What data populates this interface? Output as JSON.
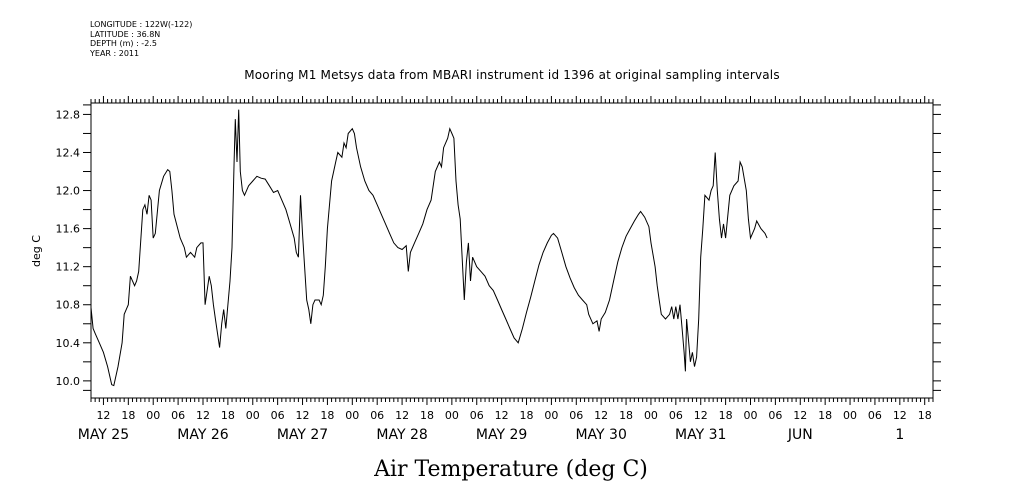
{
  "header": {
    "longitude": "LONGITUDE : 122W(-122)",
    "latitude": "LATITUDE : 36.8N",
    "depth": "DEPTH (m) : -2.5",
    "year": "YEAR : 2011"
  },
  "chart_data": {
    "type": "line",
    "title": "Mooring M1 Metsys data from MBARI instrument id 1396 at original sampling intervals",
    "xlabel": "Air Temperature (deg C)",
    "ylabel": "deg C",
    "ylim": [
      9.82,
      12.92
    ],
    "xlim": [
      3,
      206
    ],
    "x_units": "hours since May 25 00:00, 2011",
    "yticks": [
      "10.0",
      "10.4",
      "10.8",
      "11.2",
      "11.6",
      "12.0",
      "12.4",
      "12.8"
    ],
    "ytick_values": [
      10.0,
      10.4,
      10.8,
      11.2,
      11.6,
      12.0,
      12.4,
      12.8
    ],
    "hour_ticks": [
      {
        "x": 6,
        "label": "12"
      },
      {
        "x": 12,
        "label": "18"
      },
      {
        "x": 18,
        "label": "00"
      },
      {
        "x": 24,
        "label": "06"
      },
      {
        "x": 30,
        "label": "12"
      },
      {
        "x": 36,
        "label": "18"
      },
      {
        "x": 42,
        "label": "00"
      },
      {
        "x": 48,
        "label": "06"
      },
      {
        "x": 54,
        "label": "12"
      },
      {
        "x": 60,
        "label": "18"
      },
      {
        "x": 66,
        "label": "00"
      },
      {
        "x": 72,
        "label": "06"
      },
      {
        "x": 78,
        "label": "12"
      },
      {
        "x": 84,
        "label": "18"
      },
      {
        "x": 90,
        "label": "00"
      },
      {
        "x": 96,
        "label": "06"
      },
      {
        "x": 102,
        "label": "12"
      },
      {
        "x": 108,
        "label": "18"
      },
      {
        "x": 114,
        "label": "00"
      },
      {
        "x": 120,
        "label": "06"
      },
      {
        "x": 126,
        "label": "12"
      },
      {
        "x": 132,
        "label": "18"
      },
      {
        "x": 138,
        "label": "00"
      },
      {
        "x": 144,
        "label": "06"
      },
      {
        "x": 150,
        "label": "12"
      },
      {
        "x": 156,
        "label": "18"
      },
      {
        "x": 162,
        "label": "00"
      },
      {
        "x": 168,
        "label": "06"
      },
      {
        "x": 174,
        "label": "12"
      },
      {
        "x": 180,
        "label": "18"
      },
      {
        "x": 186,
        "label": "00"
      },
      {
        "x": 192,
        "label": "06"
      },
      {
        "x": 198,
        "label": "12"
      },
      {
        "x": 204,
        "label": "18"
      }
    ],
    "day_labels": [
      {
        "x": 6,
        "label": "MAY 25"
      },
      {
        "x": 30,
        "label": "MAY 26"
      },
      {
        "x": 54,
        "label": "MAY 27"
      },
      {
        "x": 78,
        "label": "MAY 28"
      },
      {
        "x": 102,
        "label": "MAY 29"
      },
      {
        "x": 126,
        "label": "MAY 30"
      },
      {
        "x": 150,
        "label": "MAY 31"
      },
      {
        "x": 174,
        "label": "JUN"
      },
      {
        "x": 198,
        "label": "1"
      }
    ],
    "series": [
      {
        "color": "#000000",
        "points": [
          [
            3.0,
            10.77
          ],
          [
            3.5,
            10.55
          ],
          [
            4.0,
            10.5
          ],
          [
            5.0,
            10.4
          ],
          [
            6.0,
            10.3
          ],
          [
            7.0,
            10.15
          ],
          [
            8.0,
            9.96
          ],
          [
            8.5,
            9.95
          ],
          [
            9.5,
            10.15
          ],
          [
            10.5,
            10.4
          ],
          [
            11.0,
            10.7
          ],
          [
            12.0,
            10.8
          ],
          [
            12.5,
            11.1
          ],
          [
            13.5,
            11.0
          ],
          [
            14.0,
            11.05
          ],
          [
            14.5,
            11.15
          ],
          [
            15.5,
            11.8
          ],
          [
            16.0,
            11.85
          ],
          [
            16.5,
            11.75
          ],
          [
            17.0,
            11.95
          ],
          [
            17.5,
            11.9
          ],
          [
            18.0,
            11.5
          ],
          [
            18.5,
            11.55
          ],
          [
            19.5,
            12.0
          ],
          [
            20.5,
            12.15
          ],
          [
            21.5,
            12.22
          ],
          [
            22.0,
            12.2
          ],
          [
            22.5,
            12.0
          ],
          [
            23.0,
            11.75
          ],
          [
            24.5,
            11.5
          ],
          [
            25.5,
            11.4
          ],
          [
            26.0,
            11.3
          ],
          [
            27.0,
            11.35
          ],
          [
            28.0,
            11.3
          ],
          [
            28.5,
            11.4
          ],
          [
            29.5,
            11.45
          ],
          [
            30.0,
            11.45
          ],
          [
            30.5,
            10.8
          ],
          [
            31.5,
            11.1
          ],
          [
            32.0,
            11.0
          ],
          [
            32.5,
            10.8
          ],
          [
            33.0,
            10.65
          ],
          [
            33.5,
            10.5
          ],
          [
            34.0,
            10.35
          ],
          [
            34.5,
            10.6
          ],
          [
            35.0,
            10.75
          ],
          [
            35.5,
            10.55
          ],
          [
            36.5,
            11.05
          ],
          [
            37.0,
            11.4
          ],
          [
            37.5,
            12.3
          ],
          [
            37.8,
            12.75
          ],
          [
            38.2,
            12.3
          ],
          [
            38.6,
            12.85
          ],
          [
            39.0,
            12.2
          ],
          [
            39.5,
            12.0
          ],
          [
            40.0,
            11.95
          ],
          [
            41.0,
            12.05
          ],
          [
            42.0,
            12.1
          ],
          [
            43.0,
            12.15
          ],
          [
            44.0,
            12.13
          ],
          [
            45.0,
            12.12
          ],
          [
            46.0,
            12.05
          ],
          [
            47.0,
            11.98
          ],
          [
            48.0,
            12.0
          ],
          [
            49.0,
            11.9
          ],
          [
            50.0,
            11.8
          ],
          [
            51.0,
            11.65
          ],
          [
            52.0,
            11.5
          ],
          [
            52.5,
            11.35
          ],
          [
            53.0,
            11.3
          ],
          [
            53.5,
            11.95
          ],
          [
            54.0,
            11.55
          ],
          [
            54.5,
            11.2
          ],
          [
            55.0,
            10.85
          ],
          [
            55.5,
            10.75
          ],
          [
            56.0,
            10.6
          ],
          [
            56.5,
            10.8
          ],
          [
            57.0,
            10.85
          ],
          [
            58.0,
            10.85
          ],
          [
            58.5,
            10.8
          ],
          [
            59.0,
            10.9
          ],
          [
            59.5,
            11.2
          ],
          [
            60.0,
            11.6
          ],
          [
            61.0,
            12.1
          ],
          [
            62.0,
            12.3
          ],
          [
            62.5,
            12.4
          ],
          [
            63.5,
            12.35
          ],
          [
            64.0,
            12.5
          ],
          [
            64.5,
            12.45
          ],
          [
            65.0,
            12.6
          ],
          [
            66.0,
            12.65
          ],
          [
            66.5,
            12.6
          ],
          [
            67.0,
            12.45
          ],
          [
            68.0,
            12.25
          ],
          [
            69.0,
            12.1
          ],
          [
            70.0,
            12.0
          ],
          [
            71.0,
            11.95
          ],
          [
            72.0,
            11.85
          ],
          [
            73.0,
            11.75
          ],
          [
            74.0,
            11.65
          ],
          [
            75.0,
            11.55
          ],
          [
            76.0,
            11.45
          ],
          [
            77.0,
            11.4
          ],
          [
            78.0,
            11.38
          ],
          [
            79.0,
            11.42
          ],
          [
            79.5,
            11.15
          ],
          [
            80.0,
            11.35
          ],
          [
            81.0,
            11.45
          ],
          [
            82.0,
            11.55
          ],
          [
            83.0,
            11.65
          ],
          [
            84.0,
            11.8
          ],
          [
            85.0,
            11.9
          ],
          [
            86.0,
            12.2
          ],
          [
            87.0,
            12.3
          ],
          [
            87.5,
            12.25
          ],
          [
            88.0,
            12.45
          ],
          [
            89.0,
            12.55
          ],
          [
            89.5,
            12.65
          ],
          [
            90.0,
            12.6
          ],
          [
            90.5,
            12.55
          ],
          [
            91.0,
            12.1
          ],
          [
            91.5,
            11.85
          ],
          [
            92.0,
            11.7
          ],
          [
            93.0,
            10.85
          ],
          [
            93.5,
            11.25
          ],
          [
            94.0,
            11.45
          ],
          [
            94.5,
            11.05
          ],
          [
            95.0,
            11.3
          ],
          [
            96.0,
            11.2
          ],
          [
            97.0,
            11.15
          ],
          [
            98.0,
            11.1
          ],
          [
            99.0,
            11.0
          ],
          [
            100.0,
            10.95
          ],
          [
            101.0,
            10.85
          ],
          [
            102.0,
            10.75
          ],
          [
            103.0,
            10.65
          ],
          [
            104.0,
            10.55
          ],
          [
            105.0,
            10.45
          ],
          [
            106.0,
            10.4
          ],
          [
            107.0,
            10.55
          ],
          [
            108.0,
            10.72
          ],
          [
            109.0,
            10.88
          ],
          [
            110.0,
            11.05
          ],
          [
            111.0,
            11.22
          ],
          [
            112.0,
            11.35
          ],
          [
            113.0,
            11.45
          ],
          [
            114.0,
            11.53
          ],
          [
            114.5,
            11.55
          ],
          [
            115.5,
            11.5
          ],
          [
            116.5,
            11.35
          ],
          [
            117.5,
            11.2
          ],
          [
            118.5,
            11.08
          ],
          [
            119.5,
            10.98
          ],
          [
            120.5,
            10.9
          ],
          [
            121.5,
            10.85
          ],
          [
            122.5,
            10.8
          ],
          [
            123.0,
            10.7
          ],
          [
            124.0,
            10.6
          ],
          [
            125.0,
            10.63
          ],
          [
            125.5,
            10.52
          ],
          [
            126.0,
            10.65
          ],
          [
            127.0,
            10.72
          ],
          [
            128.0,
            10.85
          ],
          [
            129.0,
            11.05
          ],
          [
            130.0,
            11.25
          ],
          [
            131.0,
            11.4
          ],
          [
            132.0,
            11.52
          ],
          [
            133.0,
            11.6
          ],
          [
            134.0,
            11.68
          ],
          [
            135.0,
            11.75
          ],
          [
            135.5,
            11.78
          ],
          [
            136.5,
            11.72
          ],
          [
            137.5,
            11.62
          ],
          [
            138.0,
            11.45
          ],
          [
            139.0,
            11.2
          ],
          [
            139.5,
            11.0
          ],
          [
            140.0,
            10.85
          ],
          [
            140.5,
            10.7
          ],
          [
            141.5,
            10.65
          ],
          [
            142.5,
            10.7
          ],
          [
            143.0,
            10.78
          ],
          [
            143.5,
            10.65
          ],
          [
            144.0,
            10.78
          ],
          [
            144.5,
            10.65
          ],
          [
            145.0,
            10.8
          ],
          [
            145.5,
            10.55
          ],
          [
            146.0,
            10.3
          ],
          [
            146.3,
            10.1
          ],
          [
            146.6,
            10.65
          ],
          [
            147.0,
            10.45
          ],
          [
            147.5,
            10.2
          ],
          [
            148.0,
            10.3
          ],
          [
            148.5,
            10.15
          ],
          [
            149.0,
            10.25
          ],
          [
            149.5,
            10.65
          ],
          [
            150.0,
            11.3
          ],
          [
            150.5,
            11.6
          ],
          [
            151.0,
            11.95
          ],
          [
            152.0,
            11.9
          ],
          [
            152.5,
            12.0
          ],
          [
            153.0,
            12.05
          ],
          [
            153.5,
            12.4
          ],
          [
            154.0,
            12.0
          ],
          [
            154.5,
            11.7
          ],
          [
            155.0,
            11.5
          ],
          [
            155.5,
            11.65
          ],
          [
            156.0,
            11.5
          ],
          [
            157.0,
            11.95
          ],
          [
            158.0,
            12.05
          ],
          [
            159.0,
            12.1
          ],
          [
            159.5,
            12.3
          ],
          [
            160.0,
            12.25
          ],
          [
            161.0,
            12.0
          ],
          [
            161.5,
            11.7
          ],
          [
            162.0,
            11.5
          ],
          [
            163.0,
            11.6
          ],
          [
            163.5,
            11.68
          ],
          [
            164.5,
            11.6
          ],
          [
            165.5,
            11.55
          ],
          [
            166.0,
            11.5
          ]
        ]
      }
    ]
  }
}
